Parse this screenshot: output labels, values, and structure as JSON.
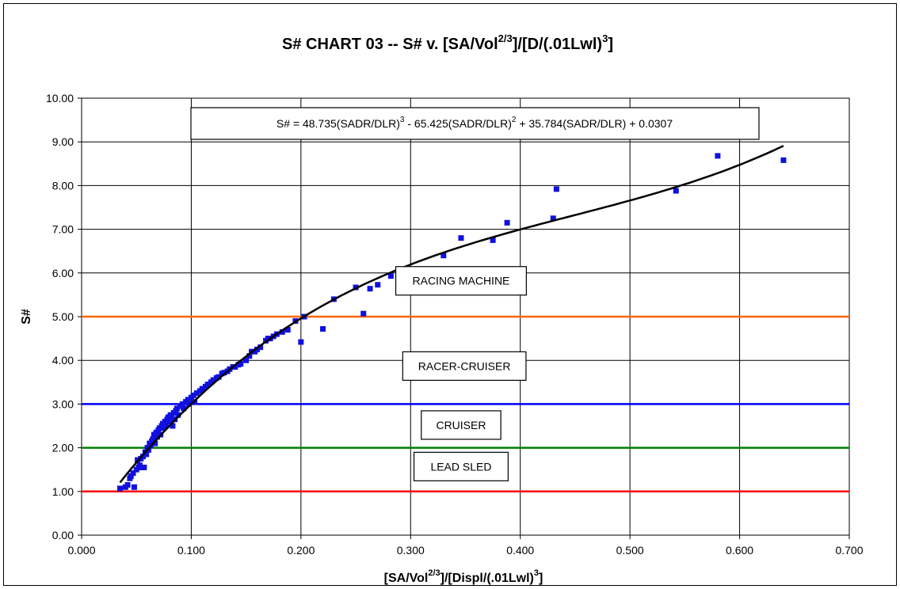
{
  "chart_data": {
    "type": "scatter",
    "title": {
      "pre": "S# CHART 03 -- S# v. [SA/Vol",
      "sup1": "2/3",
      "mid": "]/[D/(.01Lwl)",
      "sup2": "3",
      "post": "]"
    },
    "xlabel": {
      "pre": "[SA/Vol",
      "sup1": "2/3",
      "mid": "]/[Displ/(.01Lwl)",
      "sup2": "3",
      "post": "]"
    },
    "ylabel": "S#",
    "xlim": [
      0,
      0.7
    ],
    "ylim": [
      0,
      10
    ],
    "x_ticks": [
      "0.000",
      "0.100",
      "0.200",
      "0.300",
      "0.400",
      "0.500",
      "0.600",
      "0.700"
    ],
    "y_ticks": [
      "0.00",
      "1.00",
      "2.00",
      "3.00",
      "4.00",
      "5.00",
      "6.00",
      "7.00",
      "8.00",
      "9.00",
      "10.00"
    ],
    "grid": true,
    "marker_color": "#1010e0",
    "equation": {
      "p1": "S# = 48.735(SADR/DLR)",
      "s1": "3",
      "p2": " - 65.425(SADR/DLR)",
      "s2": "2",
      "p3": " + 35.784(SADR/DLR) + 0.0307"
    },
    "trendline": {
      "coefficients": [
        48.735,
        -65.425,
        35.784,
        0.0307
      ],
      "x_range": [
        0.035,
        0.64
      ],
      "color": "#000000"
    },
    "thresholds": [
      {
        "y": 1,
        "color": "#ff0000"
      },
      {
        "y": 2,
        "color": "#008000"
      },
      {
        "y": 3,
        "color": "#0000ff"
      },
      {
        "y": 5,
        "color": "#ff6600"
      }
    ],
    "annotations": [
      {
        "text": "RACING MACHINE",
        "x": 0.346,
        "y": 5.82
      },
      {
        "text": "RACER-CRUISER",
        "x": 0.349,
        "y": 3.87
      },
      {
        "text": "CRUISER",
        "x": 0.346,
        "y": 2.52
      },
      {
        "text": "LEAD SLED",
        "x": 0.346,
        "y": 1.57
      }
    ],
    "points": [
      [
        0.035,
        1.07
      ],
      [
        0.04,
        1.1
      ],
      [
        0.042,
        1.15
      ],
      [
        0.044,
        1.3
      ],
      [
        0.045,
        1.35
      ],
      [
        0.047,
        1.42
      ],
      [
        0.048,
        1.1
      ],
      [
        0.05,
        1.5
      ],
      [
        0.051,
        1.72
      ],
      [
        0.052,
        1.55
      ],
      [
        0.053,
        1.6
      ],
      [
        0.054,
        1.75
      ],
      [
        0.055,
        1.55
      ],
      [
        0.056,
        1.8
      ],
      [
        0.057,
        1.55
      ],
      [
        0.058,
        1.9
      ],
      [
        0.059,
        1.85
      ],
      [
        0.06,
        2.0
      ],
      [
        0.061,
        1.95
      ],
      [
        0.062,
        2.1
      ],
      [
        0.063,
        2.05
      ],
      [
        0.064,
        2.15
      ],
      [
        0.065,
        2.2
      ],
      [
        0.066,
        2.3
      ],
      [
        0.067,
        2.1
      ],
      [
        0.068,
        2.35
      ],
      [
        0.069,
        2.25
      ],
      [
        0.07,
        2.4
      ],
      [
        0.071,
        2.45
      ],
      [
        0.072,
        2.3
      ],
      [
        0.073,
        2.5
      ],
      [
        0.074,
        2.55
      ],
      [
        0.075,
        2.45
      ],
      [
        0.076,
        2.6
      ],
      [
        0.077,
        2.5
      ],
      [
        0.078,
        2.65
      ],
      [
        0.079,
        2.7
      ],
      [
        0.08,
        2.6
      ],
      [
        0.081,
        2.75
      ],
      [
        0.082,
        2.7
      ],
      [
        0.083,
        2.5
      ],
      [
        0.084,
        2.8
      ],
      [
        0.085,
        2.65
      ],
      [
        0.086,
        2.85
      ],
      [
        0.087,
        2.9
      ],
      [
        0.088,
        2.75
      ],
      [
        0.09,
        2.95
      ],
      [
        0.092,
        3.0
      ],
      [
        0.093,
        2.9
      ],
      [
        0.095,
        3.05
      ],
      [
        0.097,
        3.1
      ],
      [
        0.098,
        3.0
      ],
      [
        0.1,
        3.15
      ],
      [
        0.102,
        3.2
      ],
      [
        0.103,
        3.05
      ],
      [
        0.105,
        3.25
      ],
      [
        0.108,
        3.3
      ],
      [
        0.11,
        3.35
      ],
      [
        0.113,
        3.4
      ],
      [
        0.115,
        3.45
      ],
      [
        0.118,
        3.5
      ],
      [
        0.12,
        3.55
      ],
      [
        0.123,
        3.6
      ],
      [
        0.125,
        3.62
      ],
      [
        0.128,
        3.7
      ],
      [
        0.13,
        3.72
      ],
      [
        0.133,
        3.75
      ],
      [
        0.135,
        3.8
      ],
      [
        0.138,
        3.85
      ],
      [
        0.14,
        3.85
      ],
      [
        0.143,
        3.9
      ],
      [
        0.145,
        3.92
      ],
      [
        0.15,
        4.0
      ],
      [
        0.153,
        4.1
      ],
      [
        0.155,
        4.2
      ],
      [
        0.158,
        4.2
      ],
      [
        0.16,
        4.25
      ],
      [
        0.163,
        4.3
      ],
      [
        0.168,
        4.45
      ],
      [
        0.17,
        4.5
      ],
      [
        0.172,
        4.5
      ],
      [
        0.175,
        4.55
      ],
      [
        0.178,
        4.6
      ],
      [
        0.183,
        4.65
      ],
      [
        0.188,
        4.7
      ],
      [
        0.195,
        4.9
      ],
      [
        0.2,
        4.42
      ],
      [
        0.203,
        5.0
      ],
      [
        0.22,
        4.72
      ],
      [
        0.23,
        5.4
      ],
      [
        0.25,
        5.67
      ],
      [
        0.257,
        5.07
      ],
      [
        0.263,
        5.64
      ],
      [
        0.27,
        5.73
      ],
      [
        0.282,
        5.93
      ],
      [
        0.33,
        6.4
      ],
      [
        0.346,
        6.8
      ],
      [
        0.375,
        6.75
      ],
      [
        0.388,
        7.15
      ],
      [
        0.43,
        7.25
      ],
      [
        0.433,
        7.92
      ],
      [
        0.542,
        7.88
      ],
      [
        0.58,
        8.68
      ],
      [
        0.64,
        8.58
      ]
    ]
  }
}
